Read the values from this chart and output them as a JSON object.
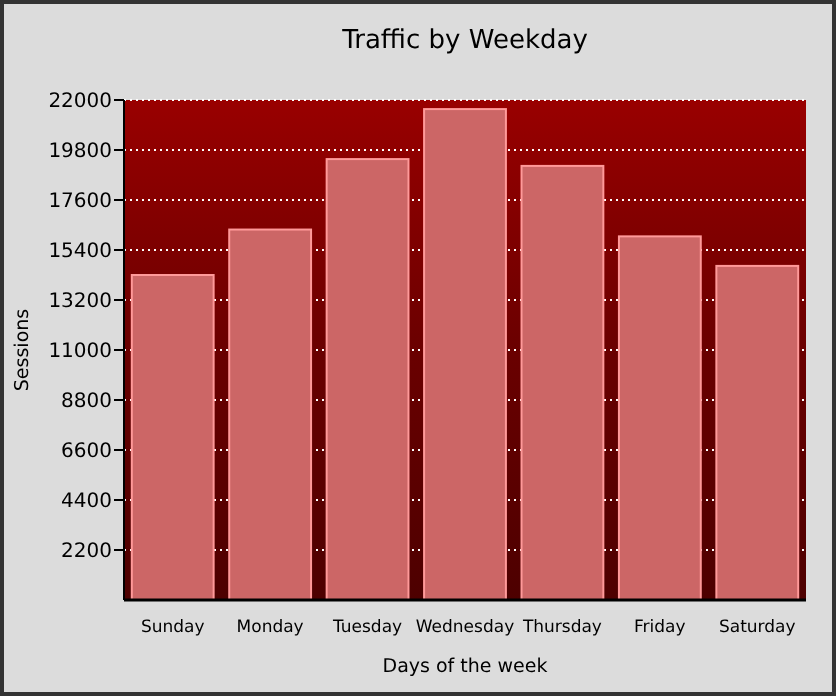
{
  "chart_data": {
    "type": "bar",
    "title": "Traffic by Weekday",
    "xlabel": "Days of the week",
    "ylabel": "Sessions",
    "categories": [
      "Sunday",
      "Monday",
      "Tuesday",
      "Wednesday",
      "Thursday",
      "Friday",
      "Saturday"
    ],
    "values": [
      14300,
      16300,
      19400,
      21600,
      19100,
      16000,
      14700
    ],
    "color": "#cc6666",
    "ylim": [
      0,
      22000
    ],
    "yticks": [
      2200,
      4400,
      6600,
      8800,
      11000,
      13200,
      15400,
      17600,
      19800,
      22000
    ],
    "grid": "y"
  }
}
